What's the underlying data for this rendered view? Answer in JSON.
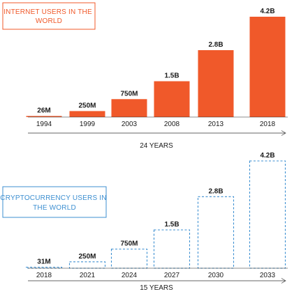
{
  "chart_data": [
    {
      "type": "bar",
      "title": "INTERNET USERS IN THE WORLD",
      "categories": [
        "1994",
        "1999",
        "2003",
        "2008",
        "2013",
        "2018"
      ],
      "values": [
        26000000,
        250000000,
        750000000,
        1500000000,
        2800000000,
        4200000000
      ],
      "value_labels": [
        "26M",
        "250M",
        "750M",
        "1.5B",
        "2.8B",
        "4.2B"
      ],
      "span_label": "24 YEARS",
      "style": "solid",
      "color": "#f0592a",
      "ylim": [
        0,
        4200000000
      ],
      "grid": false
    },
    {
      "type": "bar",
      "title": "CRYPTOCURRENCY USERS IN THE WORLD",
      "categories": [
        "2018",
        "2021",
        "2024",
        "2027",
        "2030",
        "2033"
      ],
      "values": [
        31000000,
        250000000,
        750000000,
        1500000000,
        2800000000,
        4200000000
      ],
      "value_labels": [
        "31M",
        "250M",
        "750M",
        "1.5B",
        "2.8B",
        "4.2B"
      ],
      "span_label": "15 YEARS",
      "style": "dashed",
      "color": "#3d8fd1",
      "ylim": [
        0,
        4200000000
      ],
      "grid": false
    }
  ]
}
